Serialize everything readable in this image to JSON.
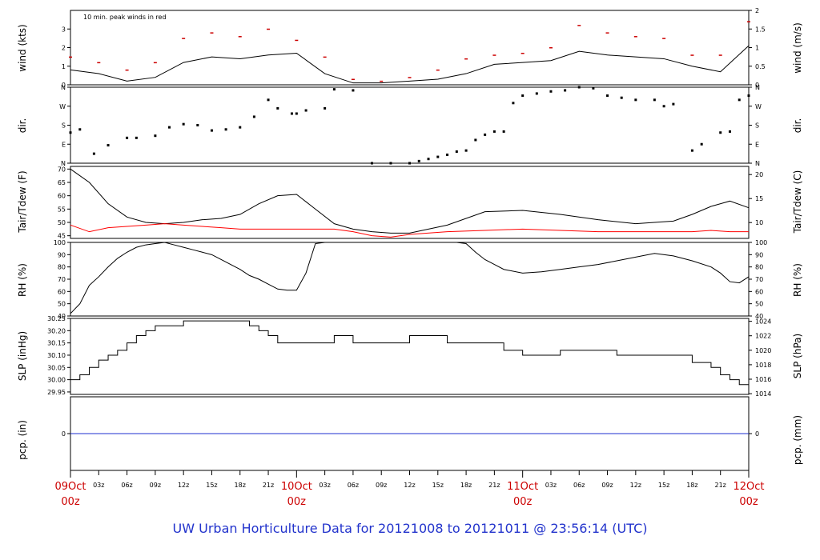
{
  "caption": "UW Urban Horticulture Data for 20121008  to  20121011 @ 23:56:14  (UTC)",
  "colors": {
    "frame": "#000000",
    "series": "#000000",
    "peak": "#cc0000",
    "dew": "#ff0000",
    "precip": "#1c2fd0",
    "date": "#cc0000",
    "caption": "#2233cc"
  },
  "time_axis": {
    "hour_ticks": [
      "03z",
      "06z",
      "09z",
      "12z",
      "15z",
      "18z",
      "21z"
    ],
    "date_labels": [
      {
        "day": "09Oct",
        "hour": "00z"
      },
      {
        "day": "10Oct",
        "hour": "00z"
      },
      {
        "day": "11Oct",
        "hour": "00z"
      },
      {
        "day": "12Oct",
        "hour": "00z"
      }
    ]
  },
  "chart_data": [
    {
      "type": "line",
      "panel": "wind",
      "ylabel": "wind (kts)",
      "y2label": "wind (m/s)",
      "ylim": [
        0,
        4
      ],
      "yticks": [
        "0",
        "1",
        "2",
        "3"
      ],
      "y2ticks": [
        "0",
        "0.5",
        "1",
        "1.5",
        "2"
      ],
      "annotation": "10 min. peak winds in red",
      "series": [
        {
          "role": "wind",
          "x_hours": [
            0,
            3,
            6,
            9,
            12,
            15,
            18,
            21,
            24,
            27,
            30,
            33,
            36,
            39,
            42,
            45,
            48,
            51,
            54,
            57,
            60,
            63,
            66,
            69,
            72
          ],
          "values": [
            0.8,
            0.6,
            0.2,
            0.4,
            1.2,
            1.5,
            1.4,
            1.6,
            1.7,
            0.6,
            0.1,
            0.1,
            0.2,
            0.3,
            0.6,
            1.1,
            1.2,
            1.3,
            1.8,
            1.6,
            1.5,
            1.4,
            1.0,
            0.7,
            2.1
          ]
        },
        {
          "role": "peak",
          "x_hours": [
            0,
            3,
            6,
            9,
            12,
            15,
            18,
            21,
            24,
            27,
            30,
            33,
            36,
            39,
            42,
            45,
            48,
            51,
            54,
            57,
            60,
            63,
            66,
            69,
            72
          ],
          "values": [
            1.5,
            1.2,
            0.8,
            1.2,
            2.5,
            2.8,
            2.6,
            3.0,
            2.4,
            1.5,
            0.3,
            0.2,
            0.4,
            0.8,
            1.4,
            1.6,
            1.7,
            2.0,
            3.2,
            2.8,
            2.6,
            2.5,
            1.6,
            1.6,
            3.4
          ]
        }
      ]
    },
    {
      "type": "scatter",
      "panel": "direction",
      "ylabel": "dir.",
      "y2label": "dir.",
      "yticks": [
        "N",
        "E",
        "S",
        "W",
        "N"
      ],
      "series": [
        {
          "role": "direction_deg",
          "x_hours": [
            0,
            1,
            2.5,
            4,
            6,
            7,
            9,
            10.5,
            12,
            13.5,
            15,
            16.5,
            18,
            19.5,
            21,
            22,
            23.5,
            24,
            25,
            27,
            28,
            30,
            32,
            34,
            36,
            37,
            38,
            39,
            40,
            41,
            42,
            43,
            44,
            45,
            46,
            47,
            48,
            49.5,
            51,
            52.5,
            54,
            55.5,
            57,
            58.5,
            60,
            62,
            63,
            64,
            66,
            67,
            69,
            70,
            71,
            72
          ],
          "values": [
            145,
            160,
            45,
            85,
            120,
            120,
            130,
            170,
            185,
            180,
            155,
            160,
            170,
            220,
            300,
            260,
            235,
            235,
            250,
            260,
            350,
            345,
            0,
            0,
            0,
            10,
            20,
            30,
            40,
            55,
            60,
            110,
            135,
            150,
            150,
            285,
            320,
            330,
            340,
            345,
            360,
            355,
            320,
            310,
            300,
            300,
            270,
            280,
            60,
            90,
            145,
            150,
            300,
            320
          ]
        }
      ]
    },
    {
      "type": "line",
      "panel": "temperature",
      "ylabel": "Tair/Tdew (F)",
      "y2label": "Tair/Tdew (C)",
      "ylim": [
        44,
        71
      ],
      "yticks": [
        "45",
        "50",
        "55",
        "60",
        "65",
        "70"
      ],
      "y2ticks": [
        "10",
        "15",
        "20"
      ],
      "series": [
        {
          "role": "Tair",
          "x_hours": [
            0,
            2,
            4,
            6,
            8,
            10,
            12,
            14,
            16,
            18,
            20,
            22,
            24,
            26,
            28,
            30,
            32,
            34,
            36,
            40,
            44,
            48,
            52,
            56,
            60,
            64,
            66,
            68,
            70,
            72
          ],
          "values": [
            70,
            65,
            57,
            52,
            50,
            49.5,
            50,
            51,
            51.5,
            53,
            57,
            60,
            60.5,
            55,
            49.5,
            47.5,
            46.5,
            46,
            46,
            49,
            54,
            54.5,
            53,
            51,
            49.5,
            50.5,
            53,
            56,
            58,
            55.5
          ]
        },
        {
          "role": "Tdew",
          "x_hours": [
            0,
            2,
            4,
            6,
            8,
            10,
            12,
            14,
            16,
            18,
            20,
            22,
            24,
            26,
            28,
            30,
            32,
            34,
            36,
            40,
            44,
            48,
            52,
            56,
            60,
            64,
            66,
            68,
            70,
            72
          ],
          "values": [
            49,
            46.5,
            48,
            48.5,
            49,
            49.5,
            49,
            48.5,
            48,
            47.5,
            47.5,
            47.5,
            47.5,
            47.5,
            47.5,
            46.5,
            45,
            44.5,
            45.5,
            46.5,
            47,
            47.5,
            47,
            46.5,
            46.5,
            46.5,
            46.5,
            47,
            46.5,
            46.5
          ]
        }
      ]
    },
    {
      "type": "line",
      "panel": "humidity",
      "ylabel": "RH (%)",
      "y2label": "RH (%)",
      "ylim": [
        40,
        100
      ],
      "yticks": [
        "40",
        "50",
        "60",
        "70",
        "80",
        "90",
        "100"
      ],
      "series": [
        {
          "role": "RH",
          "x_hours": [
            0,
            1,
            2,
            3,
            4,
            5,
            6,
            7,
            8,
            9,
            10,
            11,
            12,
            13,
            14,
            15,
            16,
            17,
            18,
            19,
            20,
            21,
            22,
            23,
            24,
            25,
            26,
            27,
            28,
            30,
            32,
            34,
            36,
            38,
            40,
            41,
            42,
            43,
            44,
            45,
            46,
            48,
            50,
            52,
            54,
            56,
            58,
            60,
            62,
            64,
            66,
            68,
            69,
            70,
            71,
            72
          ],
          "values": [
            42,
            50,
            65,
            72,
            80,
            87,
            92,
            96,
            98,
            99,
            100,
            98,
            96,
            94,
            92,
            90,
            86,
            82,
            78,
            73,
            70,
            66,
            62,
            61,
            61,
            75,
            99,
            100,
            100,
            100,
            100,
            100,
            100,
            100,
            100,
            100,
            99,
            92,
            86,
            82,
            78,
            75,
            76,
            78,
            80,
            82,
            85,
            88,
            91,
            89,
            85,
            80,
            75,
            68,
            67,
            72
          ]
        }
      ]
    },
    {
      "type": "line",
      "panel": "pressure",
      "ylabel": "SLP (inHg)",
      "y2label": "SLP (hPa)",
      "ylim": [
        29.94,
        30.25
      ],
      "yticks": [
        "29.95",
        "30.00",
        "30.05",
        "30.10",
        "30.15",
        "30.20",
        "30.25"
      ],
      "y2ticks": [
        "1014",
        "1016",
        "1018",
        "1020",
        "1022",
        "1024"
      ],
      "series": [
        {
          "role": "SLP",
          "x_hours": [
            0,
            1,
            2,
            3,
            4,
            5,
            6,
            7,
            8,
            9,
            10,
            11,
            12,
            13,
            14,
            15,
            16,
            17,
            18,
            19,
            20,
            21,
            22,
            23,
            24,
            25,
            26,
            27,
            28,
            30,
            32,
            34,
            36,
            38,
            40,
            42,
            44,
            46,
            48,
            50,
            52,
            54,
            56,
            58,
            60,
            62,
            64,
            66,
            67,
            68,
            69,
            70,
            71,
            72
          ],
          "values": [
            30.0,
            30.02,
            30.05,
            30.08,
            30.1,
            30.12,
            30.15,
            30.18,
            30.2,
            30.22,
            30.22,
            30.22,
            30.24,
            30.24,
            30.24,
            30.24,
            30.24,
            30.24,
            30.24,
            30.22,
            30.2,
            30.18,
            30.15,
            30.15,
            30.15,
            30.15,
            30.15,
            30.15,
            30.18,
            30.15,
            30.15,
            30.15,
            30.18,
            30.18,
            30.15,
            30.15,
            30.15,
            30.12,
            30.1,
            30.1,
            30.12,
            30.12,
            30.12,
            30.1,
            30.1,
            30.1,
            30.1,
            30.07,
            30.07,
            30.05,
            30.02,
            30.0,
            29.98,
            29.95
          ]
        }
      ]
    },
    {
      "type": "line",
      "panel": "precip",
      "ylabel": "pcp. (in)",
      "y2label": "pcp. (mm)",
      "yticks": [
        "0"
      ],
      "y2ticks": [
        "0"
      ],
      "series": [
        {
          "role": "precip",
          "x_hours": [
            0,
            72
          ],
          "values": [
            0,
            0
          ]
        }
      ]
    }
  ]
}
